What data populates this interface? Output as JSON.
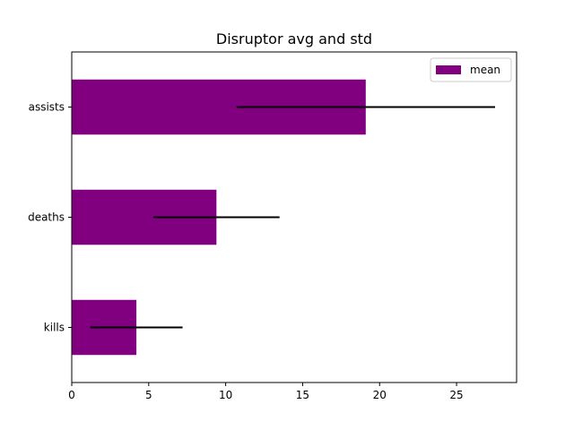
{
  "chart_data": {
    "type": "bar",
    "orientation": "horizontal",
    "title": "Disruptor avg and std",
    "categories": [
      "kills",
      "deaths",
      "assists"
    ],
    "series": [
      {
        "name": "mean",
        "values": [
          4.2,
          9.4,
          19.1
        ],
        "error": [
          3.0,
          4.1,
          8.4
        ]
      }
    ],
    "xlim": [
      0,
      28.9
    ],
    "xticks": [
      0,
      5,
      10,
      15,
      20,
      25
    ],
    "xlabel": "",
    "ylabel": "",
    "grid": false,
    "legend_position": "top-right",
    "bar_color": "#800080",
    "error_color": "#000000"
  }
}
